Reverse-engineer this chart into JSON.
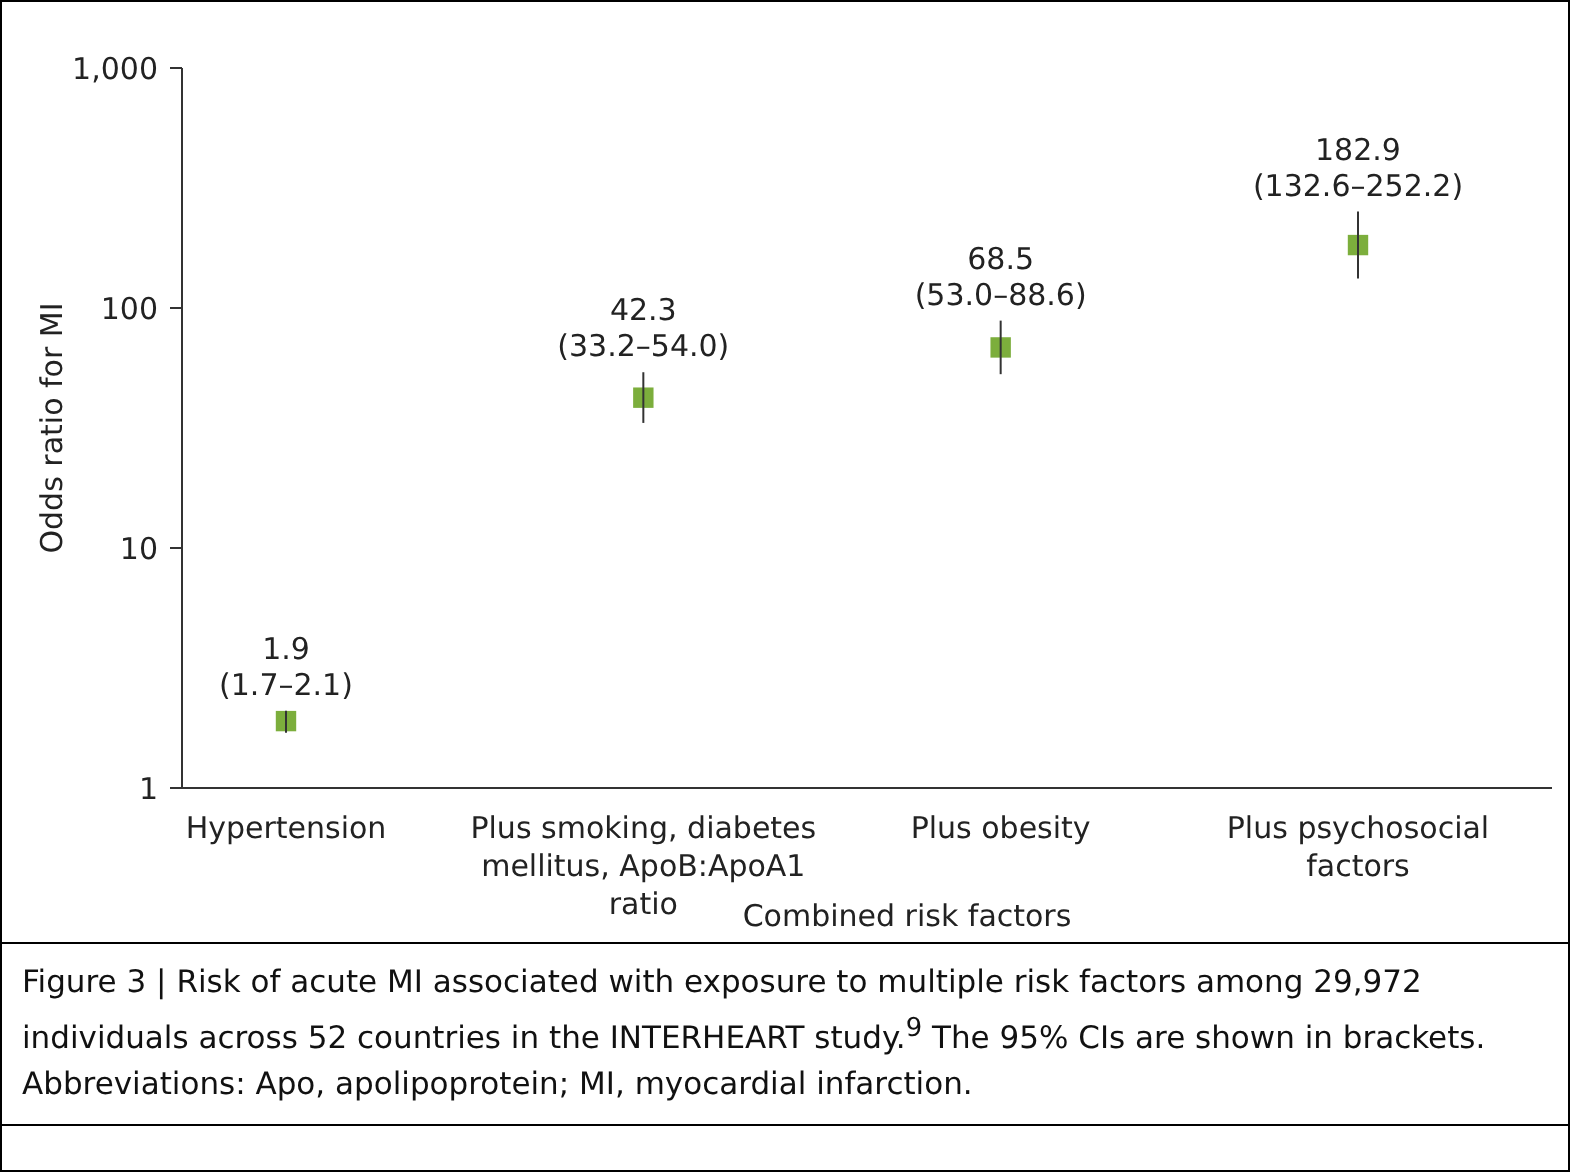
{
  "chart_data": {
    "type": "scatter",
    "xlabel": "Combined risk factors",
    "ylabel": "Odds ratio for MI",
    "categories": [
      "Hypertension",
      "Plus smoking, diabetes mellitus, ApoB:ApoA1 ratio",
      "Plus obesity",
      "Plus psychosocial factors"
    ],
    "values": [
      1.9,
      42.3,
      68.5,
      182.9
    ],
    "errors": [
      [
        1.7,
        2.1
      ],
      [
        33.2,
        54.0
      ],
      [
        53.0,
        88.6
      ],
      [
        132.6,
        252.2
      ]
    ],
    "value_labels": [
      "1.9\n(1.7–2.1)",
      "42.3\n(33.2–54.0)",
      "68.5\n(53.0–88.6)",
      "182.9\n(132.6–252.2)"
    ],
    "color": "#7cae3c",
    "marker": "square",
    "log": "y",
    "grid": false,
    "ylim": [
      1,
      1000
    ],
    "yticks": [
      1,
      10,
      100,
      {
        "value": 1000,
        "label": "1,000"
      }
    ],
    "annotations": [
      "Figure 3 | Risk of acute MI associated with exposure to multiple risk factors among 29,972 individuals across 52 countries in the INTERHEART study.$^{9}$ The 95% CIs are shown in brackets. Abbreviations: Apo, apolipoprotein; MI, myocardial infarction."
    ]
  }
}
